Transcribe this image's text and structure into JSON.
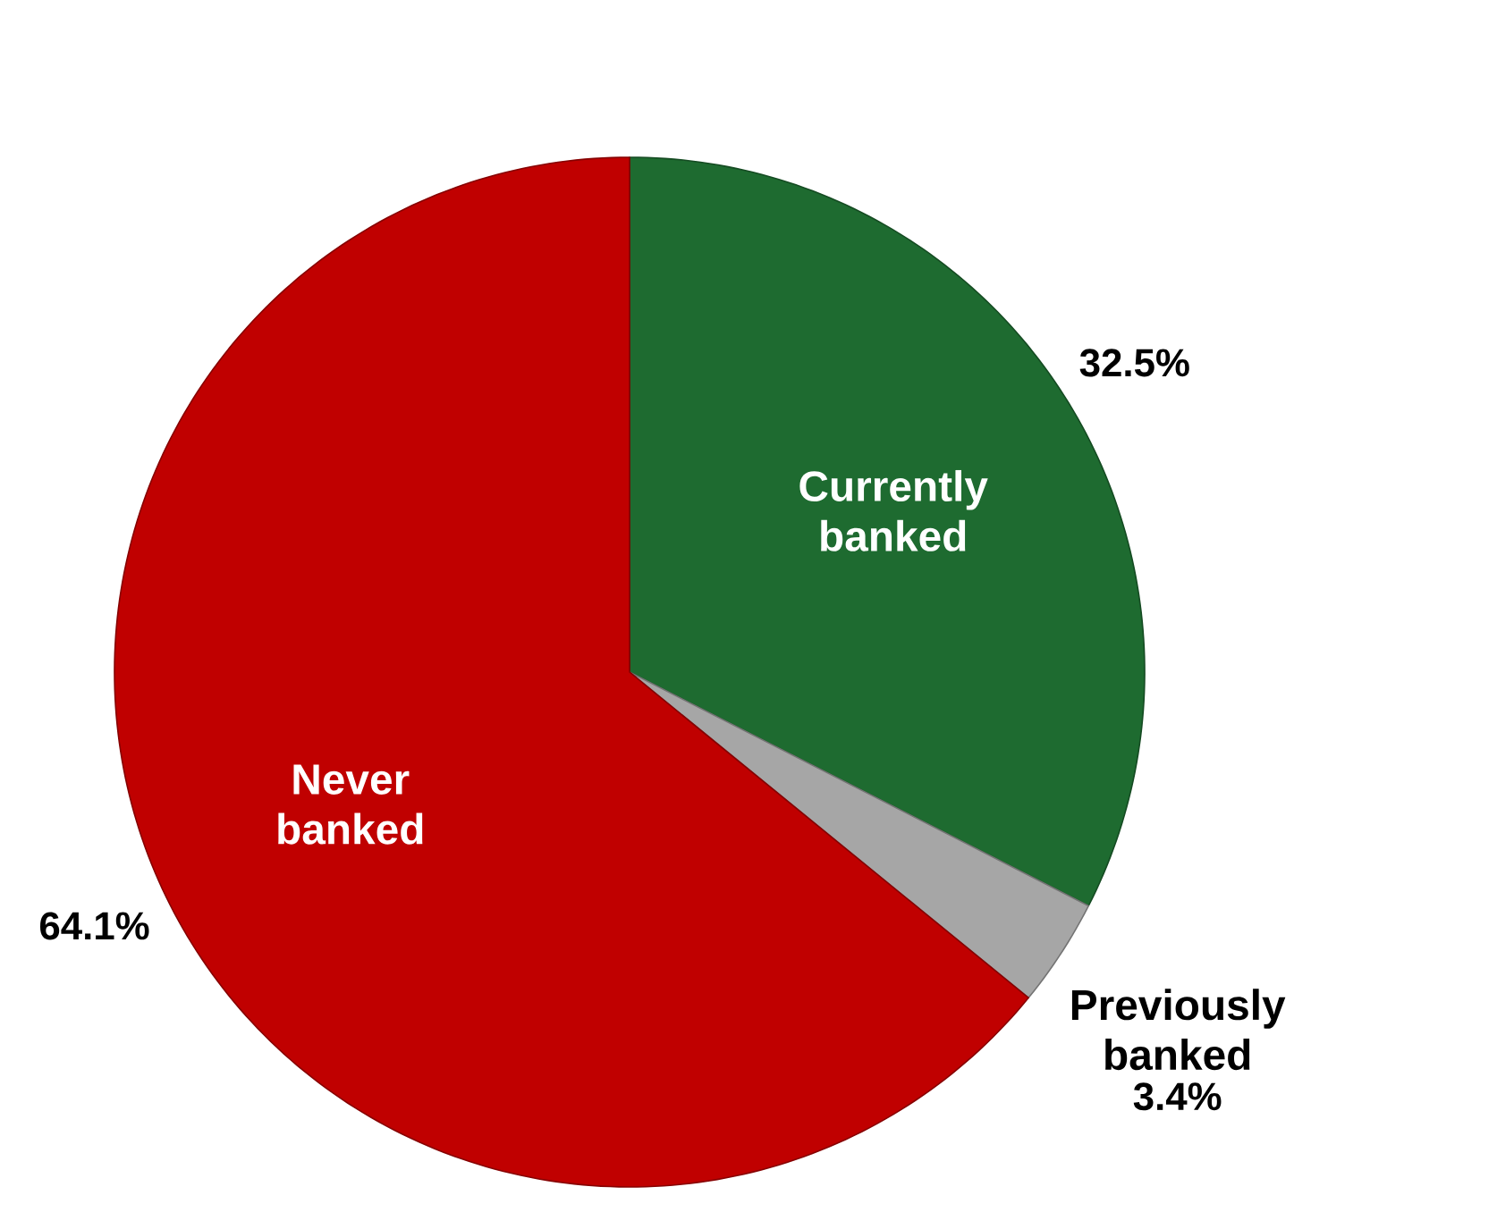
{
  "chart_data": {
    "type": "pie",
    "categories": [
      "Currently banked",
      "Previously banked",
      "Never banked"
    ],
    "values": [
      32.5,
      3.4,
      64.1
    ],
    "value_labels": [
      "32.5%",
      "3.4%",
      "64.1%"
    ],
    "colors": [
      "#1e6b30",
      "#a6a6a6",
      "#c00000"
    ]
  }
}
